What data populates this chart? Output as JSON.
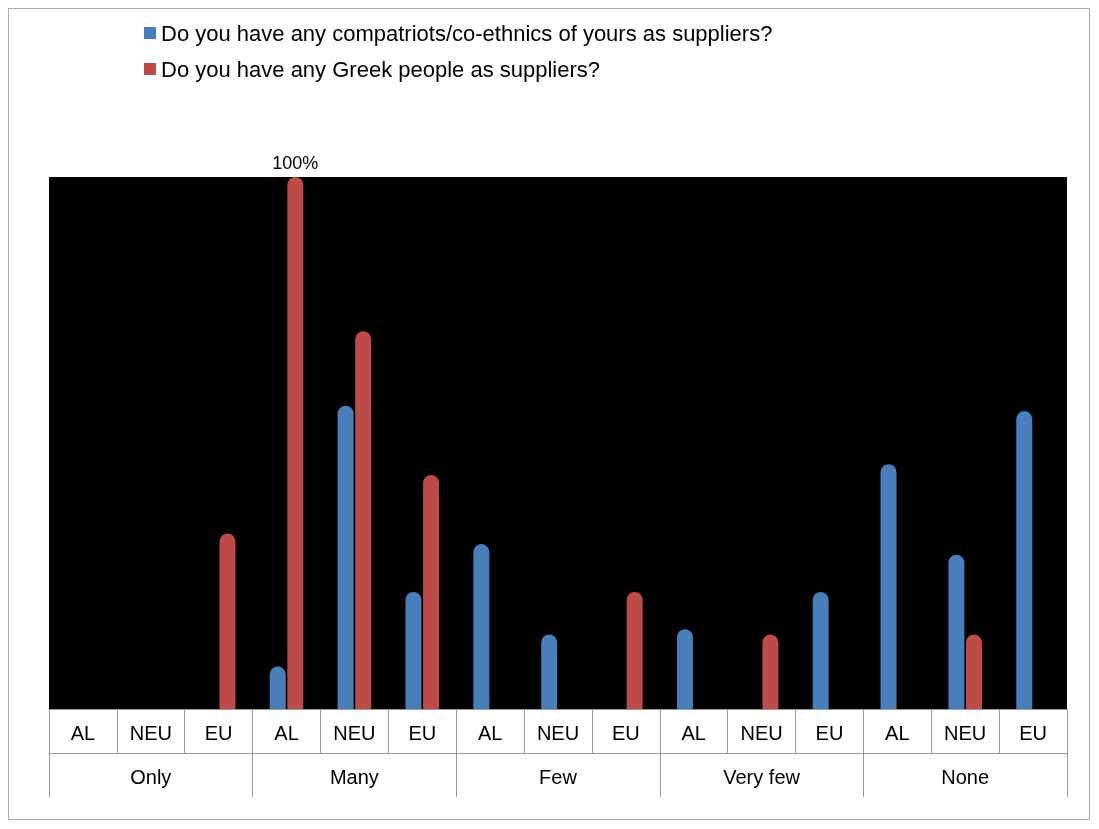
{
  "chart_data": {
    "type": "bar",
    "categories": [
      "AL",
      "NEU",
      "EU",
      "AL",
      "NEU",
      "EU",
      "AL",
      "NEU",
      "EU",
      "AL",
      "NEU",
      "EU",
      "AL",
      "NEU",
      "EU"
    ],
    "annotations": [
      "Only",
      "Many",
      "Few",
      "Very few",
      "None"
    ],
    "series": [
      {
        "name": "Do you have any compatriots/co-ethnics of yours as suppliers?",
        "color": "#4a7ebb",
        "values": [
          0,
          0,
          0,
          8,
          57,
          22,
          31,
          14,
          0,
          15,
          0,
          22,
          46,
          29,
          56
        ]
      },
      {
        "name": "Do you have any Greek people as suppliers?",
        "color": "#be4b48",
        "values": [
          0,
          0,
          33,
          100,
          71,
          44,
          0,
          0,
          22,
          0,
          14,
          0,
          0,
          14,
          0
        ],
        "value_labels": [
          null,
          null,
          null,
          "100%",
          null,
          null,
          null,
          null,
          null,
          null,
          null,
          null,
          null,
          null,
          null
        ]
      }
    ],
    "legend": "top",
    "tick_labels": "x"
  }
}
